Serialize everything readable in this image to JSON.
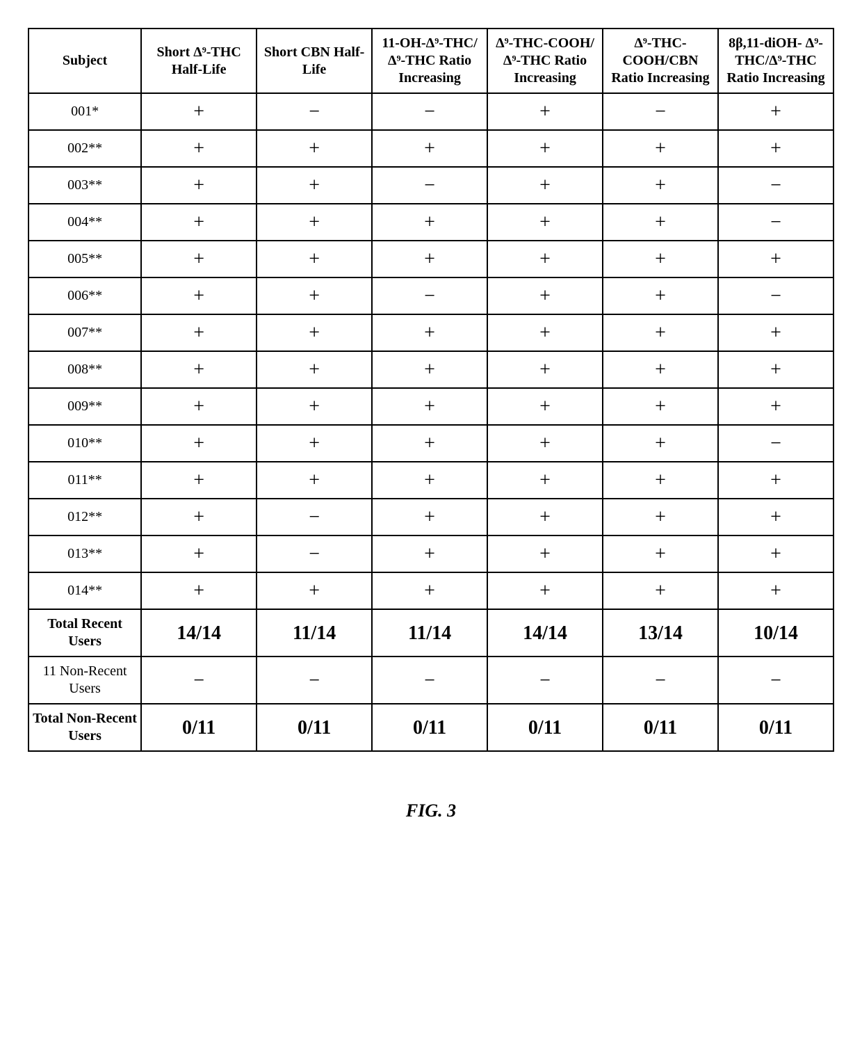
{
  "table": {
    "type": "table",
    "border_color": "#000000",
    "background_color": "#ffffff",
    "font_family": "Times New Roman",
    "header_fontsize": 20,
    "body_fontsize": 20,
    "symbol_fontsize": 28,
    "totals_fontsize": 28,
    "columns": [
      "Subject",
      "Short Δ⁹-THC Half-Life",
      "Short CBN Half-Life",
      "11-OH-Δ⁹-THC/Δ⁹-THC Ratio Increasing",
      "Δ⁹-THC-COOH/Δ⁹-THC Ratio Increasing",
      "Δ⁹-THC-COOH/CBN Ratio Increasing",
      "8β,11-diOH- Δ⁹-THC/Δ⁹-THC Ratio Increasing"
    ],
    "symbols": {
      "plus": "+",
      "minus": "−"
    },
    "rows": [
      {
        "subject": "001*",
        "v": [
          "+",
          "−",
          "−",
          "+",
          "−",
          "+"
        ]
      },
      {
        "subject": "002**",
        "v": [
          "+",
          "+",
          "+",
          "+",
          "+",
          "+"
        ]
      },
      {
        "subject": "003**",
        "v": [
          "+",
          "+",
          "−",
          "+",
          "+",
          "−"
        ]
      },
      {
        "subject": "004**",
        "v": [
          "+",
          "+",
          "+",
          "+",
          "+",
          "−"
        ]
      },
      {
        "subject": "005**",
        "v": [
          "+",
          "+",
          "+",
          "+",
          "+",
          "+"
        ]
      },
      {
        "subject": "006**",
        "v": [
          "+",
          "+",
          "−",
          "+",
          "+",
          "−"
        ]
      },
      {
        "subject": "007**",
        "v": [
          "+",
          "+",
          "+",
          "+",
          "+",
          "+"
        ]
      },
      {
        "subject": "008**",
        "v": [
          "+",
          "+",
          "+",
          "+",
          "+",
          "+"
        ]
      },
      {
        "subject": "009**",
        "v": [
          "+",
          "+",
          "+",
          "+",
          "+",
          "+"
        ]
      },
      {
        "subject": "010**",
        "v": [
          "+",
          "+",
          "+",
          "+",
          "+",
          "−"
        ]
      },
      {
        "subject": "011**",
        "v": [
          "+",
          "+",
          "+",
          "+",
          "+",
          "+"
        ]
      },
      {
        "subject": "012**",
        "v": [
          "+",
          "−",
          "+",
          "+",
          "+",
          "+"
        ]
      },
      {
        "subject": "013**",
        "v": [
          "+",
          "−",
          "+",
          "+",
          "+",
          "+"
        ]
      },
      {
        "subject": "014**",
        "v": [
          "+",
          "+",
          "+",
          "+",
          "+",
          "+"
        ]
      }
    ],
    "summary": [
      {
        "label": "Total Recent Users",
        "bold_label": true,
        "bold_values": true,
        "values": [
          "14/14",
          "11/14",
          "11/14",
          "14/14",
          "13/14",
          "10/14"
        ]
      },
      {
        "label": "11 Non-Recent Users",
        "bold_label": false,
        "bold_values": false,
        "values": [
          "−",
          "−",
          "−",
          "−",
          "−",
          "−"
        ]
      },
      {
        "label": "Total Non-Recent Users",
        "bold_label": true,
        "bold_values": true,
        "values": [
          "0/11",
          "0/11",
          "0/11",
          "0/11",
          "0/11",
          "0/11"
        ]
      }
    ]
  },
  "caption": "FIG. 3"
}
